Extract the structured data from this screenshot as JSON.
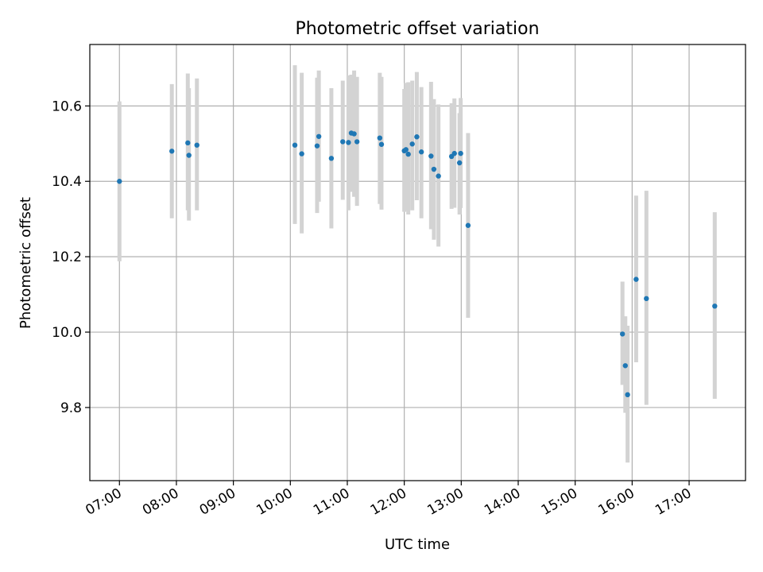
{
  "chart_data": {
    "type": "scatter",
    "title": "Photometric offset variation",
    "xlabel": "UTC time",
    "ylabel": "Photometric offset",
    "x_unit": "hours UTC",
    "xlim": [
      6.48,
      17.99
    ],
    "ylim": [
      9.606,
      10.763
    ],
    "x_ticks": [
      {
        "value": 7,
        "label": "07:00"
      },
      {
        "value": 8,
        "label": "08:00"
      },
      {
        "value": 9,
        "label": "09:00"
      },
      {
        "value": 10,
        "label": "10:00"
      },
      {
        "value": 11,
        "label": "11:00"
      },
      {
        "value": 12,
        "label": "12:00"
      },
      {
        "value": 13,
        "label": "13:00"
      },
      {
        "value": 14,
        "label": "14:00"
      },
      {
        "value": 15,
        "label": "15:00"
      },
      {
        "value": 16,
        "label": "16:00"
      },
      {
        "value": 17,
        "label": "17:00"
      }
    ],
    "y_ticks": [
      {
        "value": 9.8,
        "label": "9.8"
      },
      {
        "value": 10.0,
        "label": "10.0"
      },
      {
        "value": 10.2,
        "label": "10.2"
      },
      {
        "value": 10.4,
        "label": "10.4"
      },
      {
        "value": 10.6,
        "label": "10.6"
      }
    ],
    "grid": true,
    "marker_color": "#1f77b4",
    "errorbar_color": "#d3d3d3",
    "points": [
      {
        "x": 7.0,
        "y": 10.4,
        "ylo": 10.188,
        "yhi": 10.612
      },
      {
        "x": 7.92,
        "y": 10.48,
        "ylo": 10.302,
        "yhi": 10.658
      },
      {
        "x": 8.2,
        "y": 10.502,
        "ylo": 10.323,
        "yhi": 10.686
      },
      {
        "x": 8.22,
        "y": 10.469,
        "ylo": 10.296,
        "yhi": 10.647
      },
      {
        "x": 8.36,
        "y": 10.496,
        "ylo": 10.323,
        "yhi": 10.673
      },
      {
        "x": 10.08,
        "y": 10.496,
        "ylo": 10.287,
        "yhi": 10.708
      },
      {
        "x": 10.2,
        "y": 10.473,
        "ylo": 10.262,
        "yhi": 10.688
      },
      {
        "x": 10.47,
        "y": 10.494,
        "ylo": 10.316,
        "yhi": 10.675
      },
      {
        "x": 10.5,
        "y": 10.519,
        "ylo": 10.346,
        "yhi": 10.694
      },
      {
        "x": 10.72,
        "y": 10.461,
        "ylo": 10.275,
        "yhi": 10.647
      },
      {
        "x": 10.92,
        "y": 10.505,
        "ylo": 10.351,
        "yhi": 10.667
      },
      {
        "x": 11.02,
        "y": 10.503,
        "ylo": 10.323,
        "yhi": 10.681
      },
      {
        "x": 11.07,
        "y": 10.528,
        "ylo": 10.372,
        "yhi": 10.683
      },
      {
        "x": 11.12,
        "y": 10.526,
        "ylo": 10.359,
        "yhi": 10.694
      },
      {
        "x": 11.17,
        "y": 10.505,
        "ylo": 10.335,
        "yhi": 10.677
      },
      {
        "x": 11.57,
        "y": 10.515,
        "ylo": 10.34,
        "yhi": 10.688
      },
      {
        "x": 11.6,
        "y": 10.498,
        "ylo": 10.325,
        "yhi": 10.677
      },
      {
        "x": 12.0,
        "y": 10.481,
        "ylo": 10.319,
        "yhi": 10.645
      },
      {
        "x": 12.03,
        "y": 10.484,
        "ylo": 10.323,
        "yhi": 10.661
      },
      {
        "x": 12.07,
        "y": 10.472,
        "ylo": 10.312,
        "yhi": 10.663
      },
      {
        "x": 12.14,
        "y": 10.499,
        "ylo": 10.323,
        "yhi": 10.667
      },
      {
        "x": 12.22,
        "y": 10.518,
        "ylo": 10.35,
        "yhi": 10.69
      },
      {
        "x": 12.3,
        "y": 10.478,
        "ylo": 10.302,
        "yhi": 10.65
      },
      {
        "x": 12.47,
        "y": 10.467,
        "ylo": 10.273,
        "yhi": 10.664
      },
      {
        "x": 12.52,
        "y": 10.432,
        "ylo": 10.245,
        "yhi": 10.618
      },
      {
        "x": 12.6,
        "y": 10.414,
        "ylo": 10.227,
        "yhi": 10.604
      },
      {
        "x": 12.83,
        "y": 10.466,
        "ylo": 10.327,
        "yhi": 10.607
      },
      {
        "x": 12.88,
        "y": 10.474,
        "ylo": 10.33,
        "yhi": 10.62
      },
      {
        "x": 12.97,
        "y": 10.449,
        "ylo": 10.312,
        "yhi": 10.581
      },
      {
        "x": 12.99,
        "y": 10.474,
        "ylo": 10.329,
        "yhi": 10.621
      },
      {
        "x": 13.12,
        "y": 10.283,
        "ylo": 10.038,
        "yhi": 10.528
      },
      {
        "x": 15.83,
        "y": 9.995,
        "ylo": 9.86,
        "yhi": 10.134
      },
      {
        "x": 15.88,
        "y": 9.911,
        "ylo": 9.786,
        "yhi": 10.042
      },
      {
        "x": 15.92,
        "y": 9.834,
        "ylo": 9.654,
        "yhi": 10.017
      },
      {
        "x": 16.07,
        "y": 10.14,
        "ylo": 9.92,
        "yhi": 10.362
      },
      {
        "x": 16.25,
        "y": 10.089,
        "ylo": 9.807,
        "yhi": 10.375
      },
      {
        "x": 17.45,
        "y": 10.069,
        "ylo": 9.823,
        "yhi": 10.318
      }
    ]
  }
}
